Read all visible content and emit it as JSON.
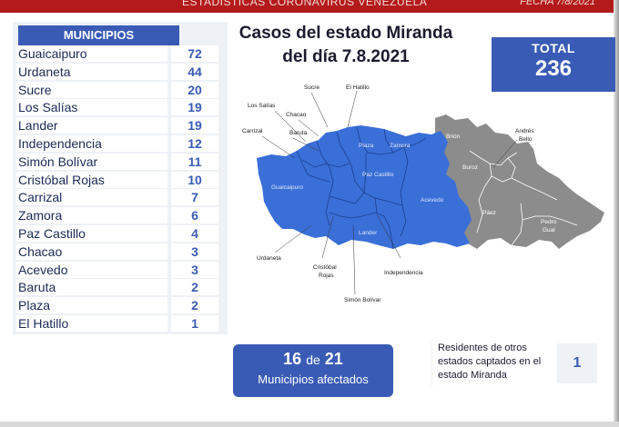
{
  "header": {
    "stats_label": "ESTADÍSTICAS CORONAVIRUS VENEZUELA",
    "date_label": "FECHA 7/8/2021"
  },
  "title": {
    "line1": "Casos del estado Miranda",
    "line2": "del día 7.8.2021"
  },
  "total": {
    "label": "TOTAL",
    "value": "236"
  },
  "municipios": {
    "header": "MUNICIPIOS",
    "rows": [
      {
        "name": "Guaicaipuro",
        "count": "72"
      },
      {
        "name": "Urdaneta",
        "count": "44"
      },
      {
        "name": "Sucre",
        "count": "20"
      },
      {
        "name": "Los Salías",
        "count": "19"
      },
      {
        "name": "Lander",
        "count": "19"
      },
      {
        "name": "Independencia",
        "count": "12"
      },
      {
        "name": "Simón Bolívar",
        "count": "11"
      },
      {
        "name": "Cristóbal Rojas",
        "count": "10"
      },
      {
        "name": "Carrizal",
        "count": "7"
      },
      {
        "name": "Zamora",
        "count": "6"
      },
      {
        "name": "Paz Castillo",
        "count": "4"
      },
      {
        "name": "Chacao",
        "count": "3"
      },
      {
        "name": "Acevedo",
        "count": "3"
      },
      {
        "name": "Baruta",
        "count": "2"
      },
      {
        "name": "Plaza",
        "count": "2"
      },
      {
        "name": "El Hatillo",
        "count": "1"
      }
    ]
  },
  "map": {
    "affected_color": "#3a6fd8",
    "unaffected_color": "#8c8c8c",
    "labels": {
      "sucre": "Sucre",
      "el_hatillo": "El Hatillo",
      "los_salias": "Los Salías",
      "chacao": "Chacao",
      "carrizal": "Carrizal",
      "baruta": "Baruta",
      "plaza": "Plaza",
      "zamora": "Zamora",
      "paz_castillo": "Paz Castillo",
      "guaicaipuro": "Guaicaipuro",
      "acevedo": "Acevedo",
      "lander": "Lander",
      "urdaneta": "Urdaneta",
      "cristobal_rojas_1": "Cristóbal",
      "cristobal_rojas_2": "Rojas",
      "independencia": "Independencia",
      "simon_bolivar": "Simón Bolívar",
      "brion": "Brión",
      "andres_bello_1": "Andrés",
      "andres_bello_2": "Bello",
      "buroz": "Buroz",
      "paez": "Páez",
      "pedro_gual_1": "Pedro",
      "pedro_gual_2": "Gual"
    }
  },
  "affected": {
    "count": "16",
    "connector": "de",
    "total": "21",
    "label": "Municipios afectados"
  },
  "residents": {
    "text": "Residentes de otros estados captados en el estado Miranda",
    "count": "1"
  }
}
